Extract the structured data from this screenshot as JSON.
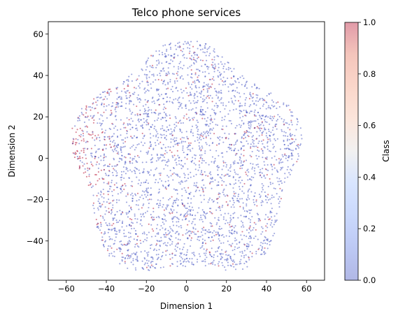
{
  "chart_data": {
    "type": "scatter",
    "title": "Telco phone services",
    "xlabel": "Dimension 1",
    "ylabel": "Dimension 2",
    "xlim": [
      -69,
      69
    ],
    "ylim": [
      -59,
      66
    ],
    "xticks": [
      -60,
      -40,
      -20,
      0,
      20,
      40,
      60
    ],
    "yticks": [
      -40,
      -20,
      0,
      20,
      40,
      60
    ],
    "xtick_labels": [
      "−60",
      "−40",
      "−20",
      "0",
      "20",
      "40",
      "60"
    ],
    "ytick_labels": [
      "−40",
      "−20",
      "0",
      "20",
      "40",
      "60"
    ],
    "grid": false,
    "legend": "none",
    "colorbar": {
      "label": "Class",
      "colormap": "coolwarm",
      "range": [
        0,
        1
      ],
      "ticks": [
        0.0,
        0.2,
        0.4,
        0.6,
        0.8,
        1.0
      ],
      "tick_labels": [
        "0.0",
        "0.2",
        "0.4",
        "0.6",
        "0.8",
        "1.0"
      ],
      "alpha": 0.4
    },
    "colors": {
      "class_0": "#3b4cc0",
      "class_1": "#b40426"
    },
    "marker_alpha": 0.5,
    "approx_point_count": 3300,
    "class_1_fraction": 0.15,
    "description_of_distribution": "roughly circular cloud of points centered near (0, -2) with radius about 58; class 1 points concentrated on the left edge (x around -55 to -45) and scattered elsewhere"
  }
}
